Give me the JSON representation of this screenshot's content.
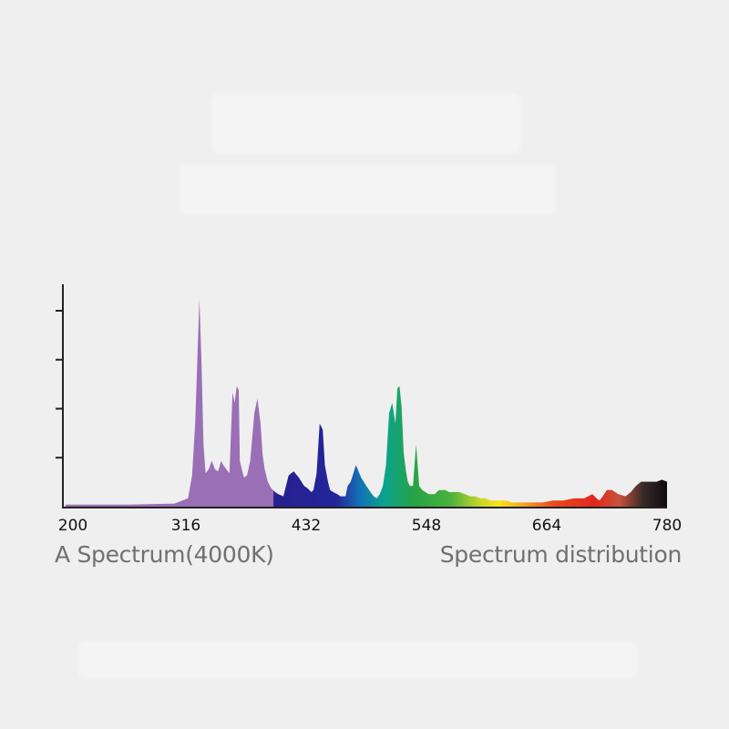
{
  "chart_data": {
    "type": "area",
    "title": "",
    "xlabel": "",
    "ylabel": "",
    "xlim": [
      200,
      780
    ],
    "ylim": [
      0,
      100
    ],
    "x_ticks": [
      200,
      316,
      432,
      548,
      664,
      780
    ],
    "y_tick_count": 4,
    "grid": false,
    "legend": "none",
    "fill": "visible-spectrum-gradient",
    "series": [
      {
        "x": [
          200,
          260,
          305,
          318,
          322,
          325,
          327,
          329,
          331,
          333,
          335,
          338,
          341,
          344,
          347,
          350,
          352,
          355,
          358,
          361,
          363,
          365,
          367,
          368,
          370,
          372,
          375,
          378,
          382,
          385,
          388,
          390,
          392,
          395,
          398,
          402,
          405,
          410,
          415,
          420,
          425,
          430,
          433,
          435,
          437,
          439,
          442,
          445,
          448,
          450,
          453,
          455,
          458,
          462,
          465,
          468,
          470,
          472,
          475,
          480,
          485,
          490,
          494,
          497,
          500,
          503,
          506,
          509,
          512,
          515,
          518,
          520,
          522,
          524,
          526,
          528,
          530,
          532,
          535,
          538,
          541,
          544,
          547,
          550,
          553,
          556,
          558,
          560,
          563,
          566,
          570,
          575,
          580,
          585,
          590,
          595,
          600,
          605,
          610,
          615,
          620,
          625,
          630,
          635,
          640,
          645,
          650,
          655,
          660,
          670,
          680,
          690,
          700,
          708,
          712,
          715,
          718,
          722,
          727,
          733,
          740,
          745,
          750,
          755,
          760,
          765,
          770,
          775,
          780
        ],
        "y": [
          1,
          1,
          1.5,
          4,
          15,
          40,
          70,
          100,
          70,
          30,
          16,
          18,
          22,
          18,
          17,
          22,
          20,
          18,
          16,
          55,
          50,
          58,
          56,
          22,
          18,
          14,
          15,
          22,
          45,
          52,
          40,
          25,
          18,
          12,
          9,
          7,
          6,
          5,
          15,
          17,
          14,
          10,
          9,
          8,
          7,
          8,
          16,
          40,
          37,
          20,
          12,
          8,
          7,
          6,
          5,
          5,
          5,
          10,
          12,
          20,
          14,
          10,
          7,
          5,
          4,
          6,
          10,
          20,
          45,
          50,
          40,
          57,
          58,
          48,
          26,
          18,
          12,
          10,
          10,
          30,
          10,
          8,
          7,
          6,
          6,
          6,
          7,
          8,
          8,
          8,
          7,
          7,
          7,
          6,
          5,
          5,
          4,
          4,
          3,
          3,
          3,
          3,
          2,
          2,
          2,
          2,
          2,
          2,
          2,
          3,
          3,
          4,
          4,
          6,
          4,
          3,
          5,
          8,
          8,
          6,
          5,
          7,
          10,
          12,
          12,
          12,
          12,
          13,
          12
        ]
      }
    ]
  },
  "captions": {
    "left": "A Spectrum(4000K)",
    "right": "Spectrum distribution"
  }
}
